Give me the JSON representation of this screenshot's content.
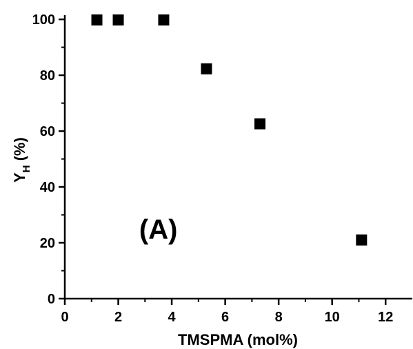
{
  "chart_data": {
    "type": "scatter",
    "title": "",
    "xlabel": "TMSPMA (mol%)",
    "ylabel_main": "Y",
    "ylabel_sub": "H",
    "ylabel_unit": " (%)",
    "xlim": [
      0,
      13
    ],
    "ylim": [
      0,
      101.5
    ],
    "xticks": [
      0,
      2,
      4,
      6,
      8,
      10,
      12
    ],
    "yticks": [
      0,
      20,
      40,
      60,
      80,
      100
    ],
    "grid": false,
    "legend": "none",
    "marker": "square",
    "marker_color": "#000000",
    "points": [
      {
        "x": 1.2,
        "y": 99.8
      },
      {
        "x": 2.0,
        "y": 99.8
      },
      {
        "x": 3.7,
        "y": 99.8
      },
      {
        "x": 5.3,
        "y": 82.3
      },
      {
        "x": 7.3,
        "y": 62.6
      },
      {
        "x": 11.1,
        "y": 21.0
      }
    ],
    "annotation": {
      "text": "(A)",
      "x": 3.5,
      "y": 25
    }
  }
}
